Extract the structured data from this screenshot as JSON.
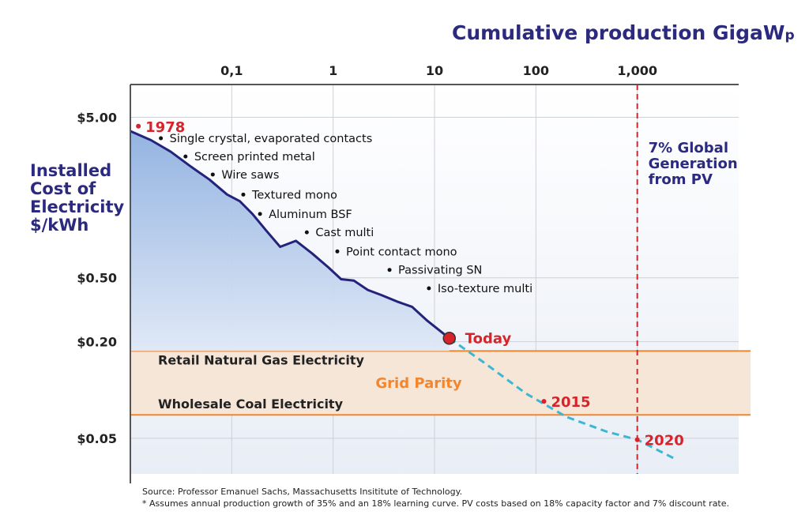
{
  "chart_data": {
    "type": "line",
    "title": "Cumulative production GigaWp",
    "title_main": "Cumulative production GigaW",
    "title_sub": "p",
    "ylabel_lines": [
      "Installed",
      "Cost of",
      "Electricity",
      "$/kWh"
    ],
    "x_axis": {
      "scale": "log",
      "position": "top",
      "ticks": [
        {
          "value": 0.1,
          "label": "0,1"
        },
        {
          "value": 1,
          "label": "1"
        },
        {
          "value": 10,
          "label": "10"
        },
        {
          "value": 100,
          "label": "100"
        },
        {
          "value": 1000,
          "label": "1,000"
        }
      ],
      "range": [
        0.01,
        10000
      ]
    },
    "y_axis": {
      "scale": "log",
      "ticks": [
        {
          "value": 5.0,
          "label": "$5.00"
        },
        {
          "value": 0.5,
          "label": "$0.50"
        },
        {
          "value": 0.2,
          "label": "$0.20"
        },
        {
          "value": 0.05,
          "label": "$0.05"
        }
      ],
      "range": [
        0.03,
        8
      ]
    },
    "series": [
      {
        "name": "Installed cost (historical)",
        "x": [
          0.01,
          0.016,
          0.025,
          0.04,
          0.06,
          0.09,
          0.12,
          0.16,
          0.22,
          0.3,
          0.43,
          0.62,
          0.9,
          1.2,
          1.6,
          2.2,
          3.0,
          4.3,
          6.0,
          8.5,
          14
        ],
        "y": [
          4.1,
          3.6,
          3.05,
          2.45,
          2.05,
          1.65,
          1.5,
          1.25,
          0.98,
          0.78,
          0.85,
          0.71,
          0.58,
          0.49,
          0.48,
          0.42,
          0.39,
          0.355,
          0.33,
          0.27,
          0.21
        ]
      },
      {
        "name": "Projection (dashed)",
        "x": [
          14,
          30,
          80,
          200,
          500,
          1000,
          2400
        ],
        "y": [
          0.21,
          0.15,
          0.095,
          0.068,
          0.055,
          0.049,
          0.037
        ]
      }
    ],
    "milestones": [
      {
        "x": 0.012,
        "y": 4.4,
        "label": "1978"
      },
      {
        "x": 14,
        "y": 0.21,
        "label": "Today"
      },
      {
        "x": 120,
        "y": 0.085,
        "label": "2015"
      },
      {
        "x": 1000,
        "y": 0.049,
        "label": "2020"
      }
    ],
    "annotations": [
      {
        "x": 0.02,
        "y": 3.7,
        "label": "Single crystal, evaporated contacts"
      },
      {
        "x": 0.035,
        "y": 2.85,
        "label": "Screen printed metal"
      },
      {
        "x": 0.065,
        "y": 2.2,
        "label": "Wire saws"
      },
      {
        "x": 0.13,
        "y": 1.65,
        "label": "Textured  mono"
      },
      {
        "x": 0.19,
        "y": 1.25,
        "label": "Aluminum BSF"
      },
      {
        "x": 0.55,
        "y": 0.96,
        "label": "Cast multi"
      },
      {
        "x": 1.1,
        "y": 0.73,
        "label": "Point contact mono"
      },
      {
        "x": 3.6,
        "y": 0.56,
        "label": "Passivating SN"
      },
      {
        "x": 8.8,
        "y": 0.43,
        "label": "Iso-texture multi"
      }
    ],
    "bands": [
      {
        "label": "Retail Natural Gas Electricity",
        "y": 0.175
      },
      {
        "label": "Wholesale Coal Electricity",
        "y": 0.07
      },
      {
        "label": "Grid Parity",
        "y_range": [
          0.07,
          0.175
        ]
      }
    ],
    "vertical_marker": {
      "x": 1000,
      "label_lines": [
        "7% Global",
        "Generation",
        "from PV"
      ]
    },
    "colors": {
      "title": "#2b2a7f",
      "curve": "#24237a",
      "fill_top": "#8fb0e0",
      "fill_bottom": "#dfe8f6",
      "milestone": "#d7232a",
      "band": "#f3852d",
      "band_fill": "#f6e6d8",
      "projection": "#3cb6d2",
      "grid": "#cfcfd8",
      "axis": "#555555"
    }
  },
  "footnotes": {
    "source": "Source: Professor Emanuel Sachs, Massachusetts Insititute of Technology.",
    "assumption": "* Assumes annual production growth of 35% and an 18% learning curve. PV costs based on 18% capacity factor and 7% discount rate."
  }
}
